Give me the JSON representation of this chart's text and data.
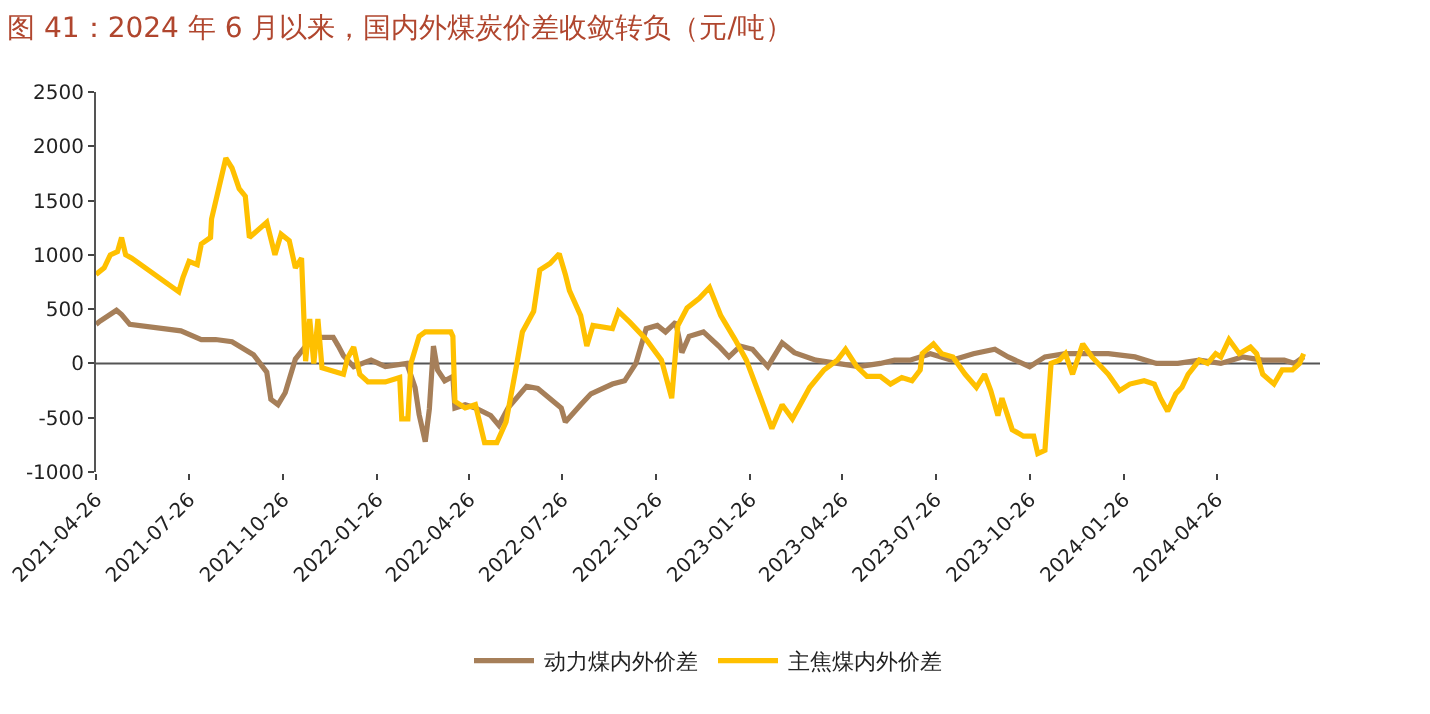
{
  "chart_data": {
    "type": "line",
    "title": "图 41：2024 年 6 月以来，国内外煤炭价差收敛转负（元/吨）",
    "xlim": [
      "2021-04-26",
      "2024-08-05"
    ],
    "xticks": [
      {
        "value": "2021-04-26",
        "label": "2021-04-26"
      },
      {
        "value": "2021-07-26",
        "label": "2021-07-26"
      },
      {
        "value": "2021-10-26",
        "label": "2021-10-26"
      },
      {
        "value": "2022-01-26",
        "label": "2022-01-26"
      },
      {
        "value": "2022-04-26",
        "label": "2022-04-26"
      },
      {
        "value": "2022-07-26",
        "label": "2022-07-26"
      },
      {
        "value": "2022-10-26",
        "label": "2022-10-26"
      },
      {
        "value": "2023-01-26",
        "label": "2023-01-26"
      },
      {
        "value": "2023-04-26",
        "label": "2023-04-26"
      },
      {
        "value": "2023-07-26",
        "label": "2023-07-26"
      },
      {
        "value": "2023-10-26",
        "label": "2023-10-26"
      },
      {
        "value": "2024-01-26",
        "label": "2024-01-26"
      },
      {
        "value": "2024-04-26",
        "label": "2024-04-26"
      }
    ],
    "ylim": [
      -1000,
      2500
    ],
    "yticks": [
      -1000,
      -500,
      0,
      500,
      1000,
      1500,
      2000,
      2500
    ],
    "grid": false,
    "ref_lines": [
      {
        "axis": "y",
        "value": 0,
        "color": "#555555"
      }
    ],
    "legend": "bottom",
    "marker": "none",
    "line_style": "solid",
    "series": [
      {
        "name": "动力煤内外价差",
        "color": "#a67f59",
        "x": [
          "2021-04-26",
          "2021-04-30",
          "2021-05-16",
          "2021-05-21",
          "2021-05-29",
          "2021-07-18",
          "2021-08-07",
          "2021-08-21",
          "2021-09-06",
          "2021-09-27",
          "2021-10-10",
          "2021-10-14",
          "2021-10-21",
          "2021-10-28",
          "2021-11-07",
          "2021-11-17",
          "2021-11-27",
          "2021-12-14",
          "2021-12-19",
          "2021-12-24",
          "2022-01-03",
          "2022-01-20",
          "2022-02-03",
          "2022-02-24",
          "2022-03-04",
          "2022-03-08",
          "2022-03-14",
          "2022-03-18",
          "2022-03-22",
          "2022-03-26",
          "2022-04-02",
          "2022-04-10",
          "2022-04-12",
          "2022-04-22",
          "2022-05-02",
          "2022-05-17",
          "2022-05-25",
          "2022-06-03",
          "2022-06-21",
          "2022-07-02",
          "2022-07-25",
          "2022-07-29",
          "2022-08-13",
          "2022-08-23",
          "2022-09-13",
          "2022-09-25",
          "2022-10-06",
          "2022-10-16",
          "2022-10-27",
          "2022-11-04",
          "2022-11-14",
          "2022-11-20",
          "2022-11-27",
          "2022-12-11",
          "2022-12-26",
          "2023-01-05",
          "2023-01-16",
          "2023-01-28",
          "2023-02-12",
          "2023-02-26",
          "2023-03-10",
          "2023-03-31",
          "2023-04-21",
          "2023-05-12",
          "2023-06-02",
          "2023-06-16",
          "2023-07-01",
          "2023-07-21",
          "2023-08-11",
          "2023-09-01",
          "2023-09-22",
          "2023-10-05",
          "2023-10-26",
          "2023-11-10",
          "2023-11-30",
          "2023-12-21",
          "2024-01-11",
          "2024-02-06",
          "2024-02-27",
          "2024-03-19",
          "2024-04-09",
          "2024-04-30",
          "2024-05-21",
          "2024-06-10",
          "2024-07-01",
          "2024-07-11",
          "2024-07-20"
        ],
        "values": [
          360,
          390,
          490,
          450,
          360,
          300,
          220,
          220,
          200,
          80,
          -80,
          -330,
          -380,
          -270,
          40,
          160,
          240,
          240,
          160,
          70,
          -30,
          30,
          -30,
          0,
          -220,
          -470,
          -720,
          -420,
          160,
          -60,
          -160,
          -120,
          -410,
          -380,
          -410,
          -480,
          -570,
          -410,
          -210,
          -230,
          -410,
          -540,
          -380,
          -280,
          -190,
          -160,
          0,
          320,
          350,
          290,
          380,
          100,
          250,
          290,
          160,
          60,
          160,
          130,
          -30,
          190,
          100,
          30,
          0,
          -30,
          0,
          30,
          30,
          90,
          30,
          90,
          130,
          60,
          -30,
          60,
          90,
          90,
          90,
          60,
          0,
          0,
          30,
          0,
          60,
          30,
          30,
          0,
          60
        ]
      },
      {
        "name": "主焦煤内外价差",
        "color": "#ffc000",
        "x": [
          "2021-04-26",
          "2021-05-04",
          "2021-05-10",
          "2021-05-17",
          "2021-05-21",
          "2021-05-25",
          "2021-05-31",
          "2021-07-16",
          "2021-07-20",
          "2021-07-26",
          "2021-08-03",
          "2021-08-07",
          "2021-08-16",
          "2021-08-17",
          "2021-08-24",
          "2021-08-31",
          "2021-09-06",
          "2021-09-13",
          "2021-09-19",
          "2021-09-23",
          "2021-10-10",
          "2021-10-18",
          "2021-10-24",
          "2021-11-01",
          "2021-11-07",
          "2021-11-13",
          "2021-11-17",
          "2021-11-21",
          "2021-11-25",
          "2021-11-29",
          "2021-12-03",
          "2021-12-24",
          "2021-12-28",
          "2022-01-03",
          "2022-01-09",
          "2022-01-17",
          "2022-02-03",
          "2022-02-17",
          "2022-02-19",
          "2022-02-25",
          "2022-02-28",
          "2022-03-08",
          "2022-03-14",
          "2022-04-08",
          "2022-04-10",
          "2022-04-12",
          "2022-04-22",
          "2022-05-02",
          "2022-05-11",
          "2022-05-23",
          "2022-06-01",
          "2022-06-11",
          "2022-06-17",
          "2022-06-28",
          "2022-07-04",
          "2022-07-14",
          "2022-07-23",
          "2022-07-29",
          "2022-08-02",
          "2022-08-13",
          "2022-08-19",
          "2022-08-25",
          "2022-09-13",
          "2022-09-19",
          "2022-09-30",
          "2022-10-16",
          "2022-10-31",
          "2022-11-10",
          "2022-11-16",
          "2022-11-25",
          "2022-12-07",
          "2022-12-17",
          "2022-12-28",
          "2023-01-11",
          "2023-01-22",
          "2023-02-05",
          "2023-02-16",
          "2023-02-26",
          "2023-03-08",
          "2023-03-25",
          "2023-04-08",
          "2023-04-21",
          "2023-04-29",
          "2023-05-10",
          "2023-05-20",
          "2023-06-02",
          "2023-06-12",
          "2023-06-23",
          "2023-07-03",
          "2023-07-11",
          "2023-07-13",
          "2023-07-24",
          "2023-08-01",
          "2023-08-12",
          "2023-08-24",
          "2023-09-04",
          "2023-09-12",
          "2023-09-18",
          "2023-09-25",
          "2023-09-29",
          "2023-10-09",
          "2023-10-20",
          "2023-10-30",
          "2023-11-03",
          "2023-11-10",
          "2023-11-16",
          "2023-11-24",
          "2023-11-30",
          "2023-12-07",
          "2023-12-17",
          "2023-12-26",
          "2024-01-01",
          "2024-01-11",
          "2024-01-22",
          "2024-02-01",
          "2024-02-15",
          "2024-02-25",
          "2024-03-02",
          "2024-03-09",
          "2024-03-17",
          "2024-03-23",
          "2024-03-29",
          "2024-04-09",
          "2024-04-17",
          "2024-04-25",
          "2024-04-30",
          "2024-05-08",
          "2024-05-18",
          "2024-05-29",
          "2024-06-04",
          "2024-06-10",
          "2024-06-21",
          "2024-06-29",
          "2024-07-09",
          "2024-07-16",
          "2024-07-20"
        ],
        "values": [
          820,
          880,
          1000,
          1030,
          1160,
          1000,
          970,
          660,
          790,
          940,
          910,
          1100,
          1160,
          1330,
          1610,
          1890,
          1800,
          1610,
          1540,
          1160,
          1300,
          1000,
          1190,
          1130,
          880,
          970,
          20,
          410,
          0,
          410,
          -40,
          -100,
          50,
          150,
          -100,
          -170,
          -170,
          -130,
          -510,
          -510,
          0,
          250,
          290,
          290,
          250,
          -350,
          -410,
          -380,
          -730,
          -730,
          -540,
          -30,
          290,
          480,
          860,
          920,
          1010,
          820,
          670,
          440,
          160,
          350,
          320,
          480,
          380,
          220,
          30,
          -320,
          350,
          510,
          600,
          700,
          440,
          220,
          30,
          -320,
          -600,
          -380,
          -510,
          -220,
          -60,
          30,
          130,
          -30,
          -120,
          -120,
          -190,
          -130,
          -160,
          -60,
          90,
          180,
          90,
          60,
          -100,
          -220,
          -100,
          -250,
          -480,
          -320,
          -610,
          -670,
          -670,
          -830,
          -800,
          0,
          30,
          90,
          -100,
          180,
          60,
          0,
          -100,
          -250,
          -190,
          -160,
          -190,
          -320,
          -440,
          -280,
          -220,
          -100,
          30,
          0,
          90,
          60,
          220,
          90,
          150,
          90,
          -100,
          -190,
          -60,
          -60,
          0,
          90
        ]
      }
    ]
  }
}
